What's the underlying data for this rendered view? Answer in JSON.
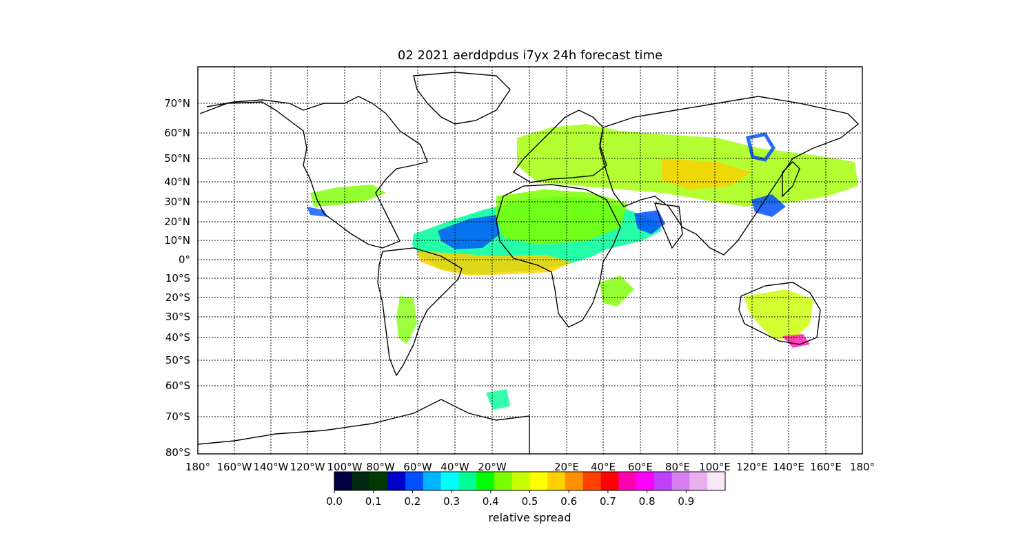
{
  "title": "02 2021 aerddpdus  i7yx 24h forecast time",
  "lat_ticks": [
    "70°N",
    "60°N",
    "50°N",
    "40°N",
    "30°N",
    "20°N",
    "10°N",
    "0°",
    "10°S",
    "20°S",
    "30°S",
    "40°S",
    "50°S",
    "60°S",
    "70°S",
    "80°S"
  ],
  "lon_ticks": [
    "180°",
    "160°W",
    "140°W",
    "120°W",
    "100°W",
    "80°W",
    "60°W",
    "40°W",
    "20°W",
    "20°E",
    "40°E",
    "60°E",
    "80°E",
    "100°E",
    "120°E",
    "140°E",
    "160°E",
    "180°"
  ],
  "colorbar": {
    "label": "relative spread",
    "ticks": [
      "0.0",
      "0.1",
      "0.2",
      "0.3",
      "0.4",
      "0.5",
      "0.6",
      "0.7",
      "0.8",
      "0.9"
    ],
    "range": [
      0.0,
      1.0
    ],
    "colors": [
      "#000040",
      "#002a10",
      "#003a00",
      "#0000c8",
      "#0050ff",
      "#00b4ff",
      "#00ffff",
      "#00ff96",
      "#00ff00",
      "#7cff00",
      "#c8ff00",
      "#ffff00",
      "#ffd000",
      "#ff9000",
      "#ff4000",
      "#ff0000",
      "#ff00b0",
      "#ff00ff",
      "#c040ff",
      "#d880f0",
      "#e8b0f0",
      "#f8e8f8"
    ]
  }
}
